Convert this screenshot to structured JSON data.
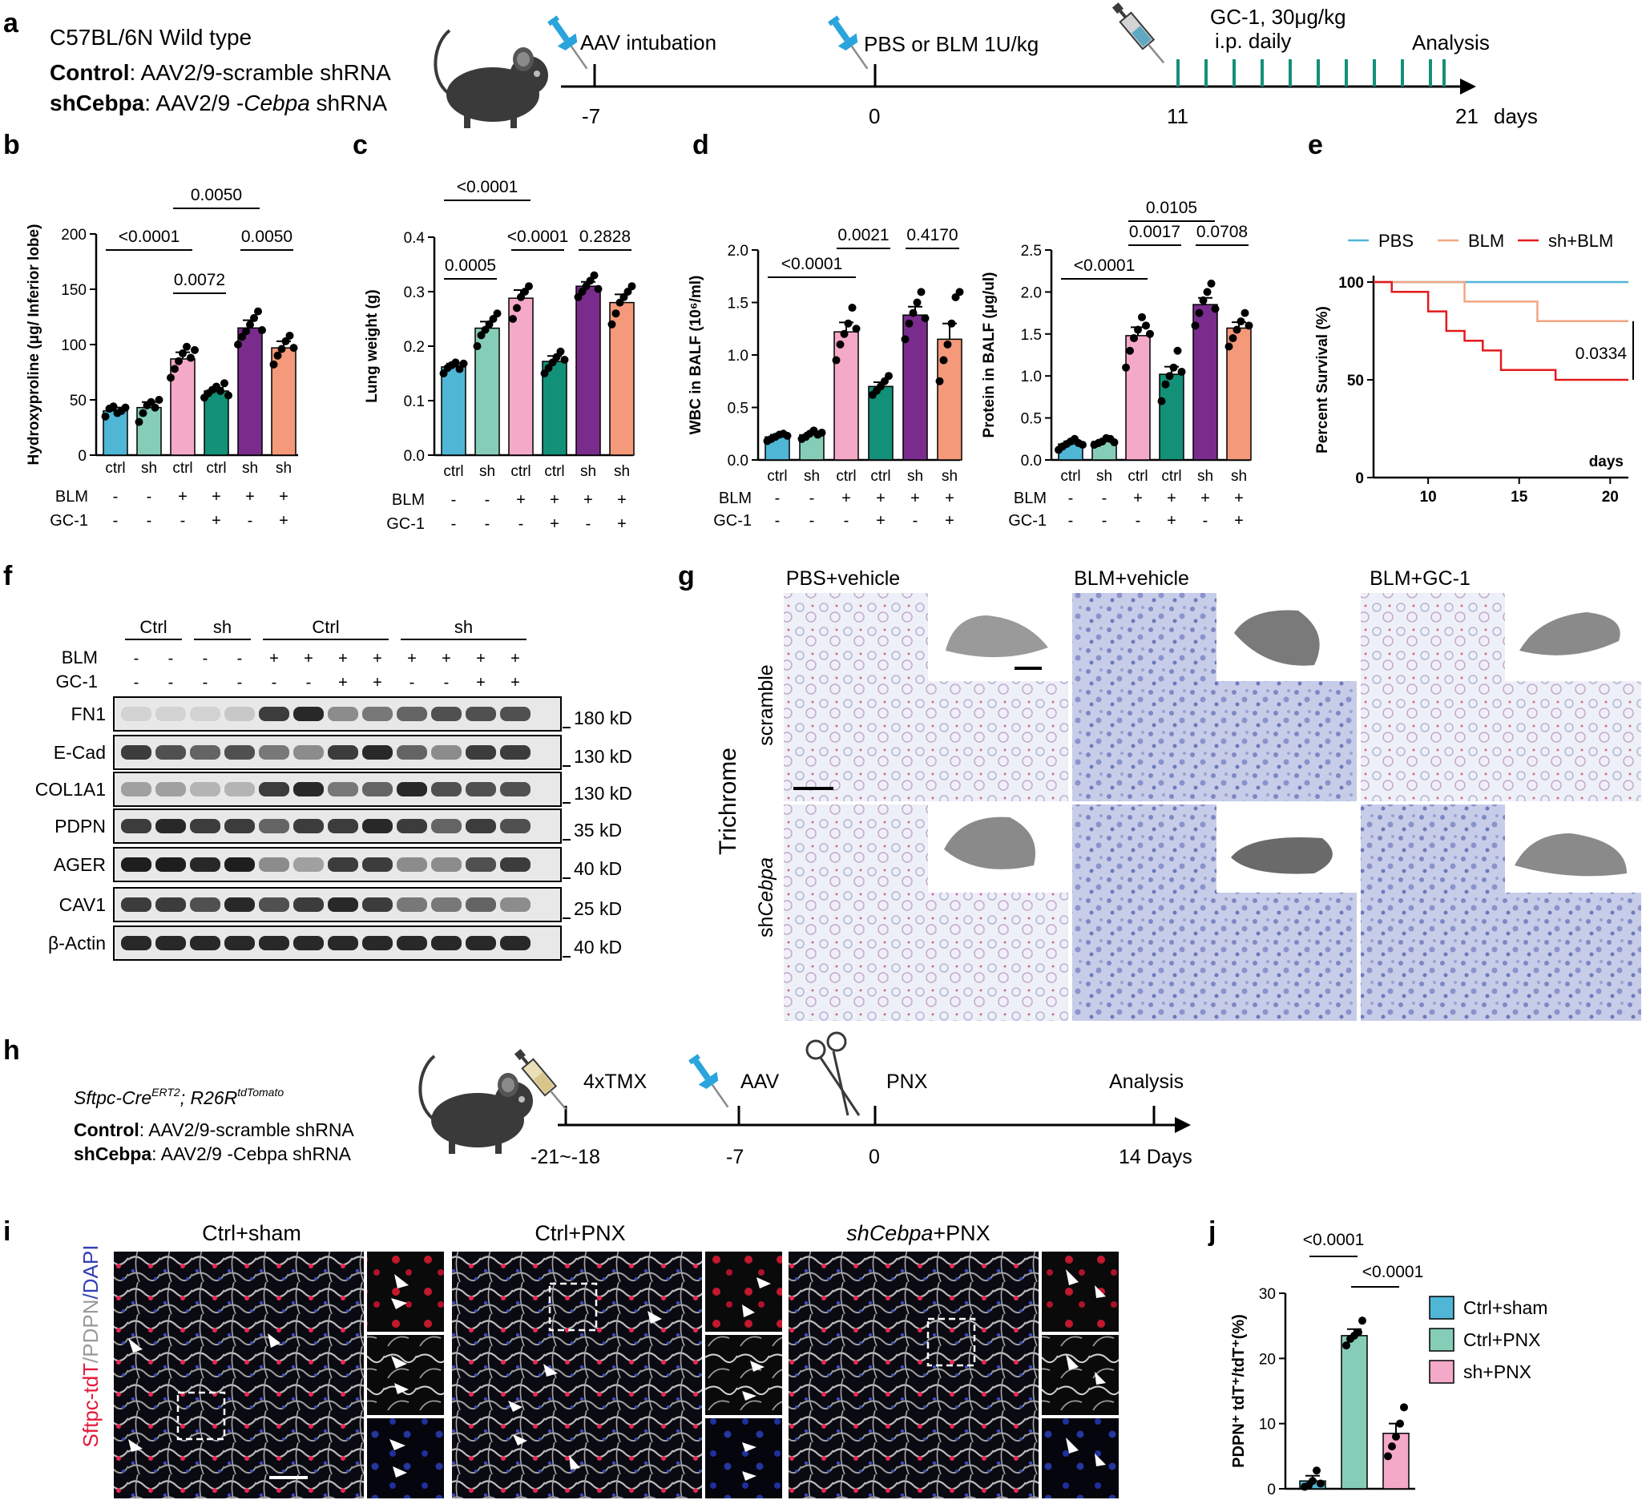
{
  "panel_letters": [
    "a",
    "b",
    "c",
    "d",
    "e",
    "f",
    "g",
    "h",
    "i",
    "j"
  ],
  "panel_a": {
    "strain": "C57BL/6N Wild type",
    "groups": [
      {
        "name": "Control",
        "desc": ": AAV2/9-scramble shRNA"
      },
      {
        "name": "shCebpa",
        "desc": ": AAV2/9 -",
        "desc_italic": "Cebpa",
        "desc_tail": " shRNA"
      }
    ],
    "events": [
      "AAV intubation",
      "PBS or BLM 1U/kg",
      "GC-1, 30μg/kg",
      "i.p. daily",
      "Analysis"
    ],
    "ticks": [
      "-7",
      "0",
      "11",
      "21",
      "days"
    ]
  },
  "row_labels": {
    "blm": "BLM",
    "gc1": "GC-1",
    "geno": [
      "ctrl",
      "sh",
      "ctrl",
      "ctrl",
      "sh",
      "sh"
    ],
    "blm_signs": [
      "-",
      "-",
      "+",
      "+",
      "+",
      "+"
    ],
    "gc1_signs": [
      "-",
      "-",
      "-",
      "+",
      "-",
      "+"
    ]
  },
  "colors": {
    "ctrl_pbs": "#4fb6d6",
    "sh_pbs": "#86cdb8",
    "ctrl_blm": "#f5a9c8",
    "ctrl_blm_gc1": "#139078",
    "sh_blm": "#7a2c8d",
    "sh_blm_gc1": "#f49979"
  },
  "chart_data": [
    {
      "panel": "b",
      "type": "bar",
      "ylabel": "Hydroxyproline (μg/ Inferior lobe)",
      "ylim": [
        0,
        200
      ],
      "yticks": [
        "0",
        "50",
        "100",
        "150",
        "200"
      ],
      "values": [
        40,
        43,
        87,
        58,
        115,
        97
      ],
      "errors": [
        3,
        5,
        6,
        3,
        7,
        6
      ],
      "points": [
        [
          35,
          42,
          44,
          38,
          40,
          43
        ],
        [
          30,
          38,
          45,
          48,
          43,
          50
        ],
        [
          70,
          78,
          85,
          92,
          98,
          88,
          95
        ],
        [
          52,
          56,
          59,
          62,
          58,
          65,
          54
        ],
        [
          100,
          107,
          112,
          118,
          124,
          130,
          113
        ],
        [
          82,
          90,
          96,
          103,
          108,
          97
        ]
      ],
      "pvalues": [
        "<0.0001",
        "0.0050",
        "0.0072",
        "0.0050"
      ]
    },
    {
      "panel": "c",
      "type": "bar",
      "ylabel": "Lung weight (g)",
      "ylim": [
        0,
        0.4
      ],
      "yticks": [
        "0.0",
        "0.1",
        "0.2",
        "0.3",
        "0.4"
      ],
      "values": [
        0.162,
        0.233,
        0.288,
        0.172,
        0.31,
        0.28
      ],
      "errors": [
        0.006,
        0.012,
        0.015,
        0.01,
        0.008,
        0.015
      ],
      "points": [
        [
          0.15,
          0.16,
          0.165,
          0.17,
          0.158,
          0.168
        ],
        [
          0.2,
          0.22,
          0.23,
          0.24,
          0.25,
          0.26
        ],
        [
          0.25,
          0.27,
          0.29,
          0.3,
          0.31
        ],
        [
          0.15,
          0.16,
          0.17,
          0.18,
          0.19,
          0.175
        ],
        [
          0.29,
          0.3,
          0.31,
          0.32,
          0.33,
          0.305
        ],
        [
          0.24,
          0.26,
          0.28,
          0.29,
          0.3,
          0.31
        ]
      ],
      "pvalues": [
        "<0.0001",
        "0.0005",
        "<0.0001",
        "0.2828"
      ]
    },
    {
      "panel": "d1",
      "type": "bar",
      "ylabel": "WBC in BALF (10⁶/ml)",
      "ylim": [
        0,
        2.0
      ],
      "yticks": [
        "0.0",
        "0.5",
        "1.0",
        "1.5",
        "2.0"
      ],
      "values": [
        0.22,
        0.24,
        1.22,
        0.7,
        1.38,
        1.15
      ],
      "errors": [
        0.02,
        0.02,
        0.09,
        0.04,
        0.08,
        0.15
      ],
      "points": [
        [
          0.18,
          0.2,
          0.22,
          0.24,
          0.25,
          0.23
        ],
        [
          0.2,
          0.22,
          0.25,
          0.28,
          0.24,
          0.26
        ],
        [
          0.95,
          1.1,
          1.2,
          1.3,
          1.45,
          1.25
        ],
        [
          0.62,
          0.66,
          0.7,
          0.75,
          0.8
        ],
        [
          1.15,
          1.3,
          1.4,
          1.5,
          1.6,
          1.35
        ],
        [
          0.75,
          0.95,
          1.1,
          1.3,
          1.55,
          1.6
        ]
      ],
      "pvalues": [
        "<0.0001",
        "0.0021",
        "0.4170"
      ]
    },
    {
      "panel": "d2",
      "type": "bar",
      "ylabel": "Protein in BALF  (μg/ul)",
      "ylim": [
        0,
        2.5
      ],
      "yticks": [
        "0.0",
        "0.5",
        "1.0",
        "1.5",
        "2.0",
        "2.5"
      ],
      "values": [
        0.19,
        0.22,
        1.48,
        1.02,
        1.85,
        1.57
      ],
      "errors": [
        0.03,
        0.02,
        0.1,
        0.09,
        0.08,
        0.07
      ],
      "points": [
        [
          0.12,
          0.16,
          0.19,
          0.22,
          0.25,
          0.2,
          0.18
        ],
        [
          0.18,
          0.2,
          0.22,
          0.26,
          0.25,
          0.21
        ],
        [
          1.1,
          1.3,
          1.45,
          1.55,
          1.7,
          1.6,
          1.5
        ],
        [
          0.7,
          0.9,
          1.0,
          1.1,
          1.3,
          1.05
        ],
        [
          1.6,
          1.75,
          1.9,
          2.0,
          2.1,
          1.8
        ],
        [
          1.35,
          1.45,
          1.55,
          1.65,
          1.75,
          1.6
        ]
      ],
      "pvalues": [
        "<0.0001",
        "0.0105",
        "0.0017",
        "0.0708"
      ]
    },
    {
      "panel": "e",
      "type": "line",
      "ylabel": "Percent Survival (%)",
      "xlabel": "days",
      "xlim": [
        7,
        21
      ],
      "ylim": [
        0,
        100
      ],
      "xticks": [
        "10",
        "15",
        "20"
      ],
      "yticks": [
        "0",
        "50",
        "100"
      ],
      "series": [
        {
          "name": "PBS",
          "color": "#4fb6d6",
          "x": [
            7,
            21
          ],
          "y": [
            100,
            100
          ]
        },
        {
          "name": "BLM",
          "color": "#f4a582",
          "x": [
            7,
            12,
            12,
            16,
            16,
            21
          ],
          "y": [
            100,
            100,
            90,
            90,
            80,
            80
          ]
        },
        {
          "name": "sh+BLM",
          "color": "#e31a1c",
          "x": [
            7,
            8,
            8,
            10,
            10,
            11,
            11,
            12,
            12,
            13,
            13,
            14,
            14,
            17,
            17,
            21
          ],
          "y": [
            100,
            100,
            95,
            95,
            85,
            85,
            75,
            75,
            70,
            70,
            65,
            65,
            55,
            55,
            50,
            50
          ]
        }
      ],
      "pvalue": "0.0334"
    },
    {
      "panel": "j",
      "type": "bar",
      "ylabel": "PDPN⁺ tdT⁺/tdT⁺(%)",
      "ylim": [
        0,
        30
      ],
      "yticks": [
        "0",
        "10",
        "20",
        "30"
      ],
      "categories": [
        "Ctrl+sham",
        "Ctrl+PNX",
        "sh+PNX"
      ],
      "values": [
        1.2,
        23.5,
        8.5
      ],
      "errors": [
        0.8,
        1.0,
        1.5
      ],
      "points": [
        [
          0.3,
          0.5,
          1.2,
          2.8,
          0.8
        ],
        [
          22,
          23,
          23.5,
          24,
          25.8
        ],
        [
          5,
          6.5,
          8,
          10,
          12.5
        ]
      ],
      "colors": [
        "#4fb6d6",
        "#86cdb8",
        "#f5a9c8"
      ],
      "pvalues": [
        "<0.0001",
        "<0.0001"
      ]
    }
  ],
  "panel_f": {
    "groups": [
      "Ctrl",
      "sh",
      "Ctrl",
      "sh"
    ],
    "blm_row": [
      "-",
      "-",
      "-",
      "-",
      "+",
      "+",
      "+",
      "+",
      "+",
      "+",
      "+",
      "+"
    ],
    "gc1_row": [
      "-",
      "-",
      "-",
      "-",
      "-",
      "-",
      "+",
      "+",
      "-",
      "-",
      "+",
      "+"
    ],
    "proteins": [
      "FN1",
      "E-Cad",
      "COL1A1",
      "PDPN",
      "AGER",
      "CAV1",
      "β-Actin"
    ],
    "sizes": [
      "180 kD",
      "130 kD",
      "130 kD",
      "35 kD",
      "40 kD",
      "25 kD",
      "40 kD"
    ],
    "band_intensity": [
      [
        0.05,
        0.05,
        0.05,
        0.1,
        0.8,
        0.9,
        0.4,
        0.5,
        0.6,
        0.7,
        0.7,
        0.7
      ],
      [
        0.8,
        0.7,
        0.6,
        0.7,
        0.5,
        0.4,
        0.8,
        0.9,
        0.6,
        0.4,
        0.8,
        0.8
      ],
      [
        0.3,
        0.3,
        0.2,
        0.2,
        0.8,
        0.9,
        0.5,
        0.6,
        0.9,
        0.7,
        0.7,
        0.7
      ],
      [
        0.8,
        0.9,
        0.8,
        0.8,
        0.6,
        0.8,
        0.8,
        0.9,
        0.8,
        0.6,
        0.8,
        0.7
      ],
      [
        0.95,
        0.95,
        0.9,
        0.95,
        0.4,
        0.3,
        0.8,
        0.8,
        0.4,
        0.4,
        0.7,
        0.8
      ],
      [
        0.8,
        0.8,
        0.7,
        0.9,
        0.7,
        0.8,
        0.9,
        0.8,
        0.5,
        0.5,
        0.6,
        0.4
      ],
      [
        0.9,
        0.9,
        0.9,
        0.9,
        0.9,
        0.9,
        0.9,
        0.9,
        0.9,
        0.9,
        0.9,
        0.9
      ]
    ]
  },
  "panel_g": {
    "stain": "Trichrome",
    "columns": [
      "PBS+vehicle",
      "BLM+vehicle",
      "BLM+GC-1"
    ],
    "rows": [
      "scramble",
      "shCebpa"
    ]
  },
  "panel_h": {
    "line_a": "Sftpc-Cre",
    "line_a_sup": "ERT2",
    "line_b": "; R26R",
    "line_b_sup": "tdTomato",
    "groups": [
      {
        "name": "Control",
        "desc": ": AAV2/9-scramble shRNA"
      },
      {
        "name": "shCebpa",
        "desc": ": AAV2/9 -Cebpa shRNA"
      }
    ],
    "events": [
      "4xTMX",
      "AAV",
      "PNX",
      "Analysis"
    ],
    "ticks": [
      "-21~-18",
      "-7",
      "0",
      "14 Days"
    ]
  },
  "panel_i": {
    "side_label": [
      "Sftpc-tdT",
      "/PDPN",
      "/DAPI"
    ],
    "columns": [
      "Ctrl+sham",
      "Ctrl+PNX",
      "shCebpa+PNX"
    ]
  },
  "panel_j_legend": [
    "Ctrl+sham",
    "Ctrl+PNX",
    "sh+PNX"
  ]
}
